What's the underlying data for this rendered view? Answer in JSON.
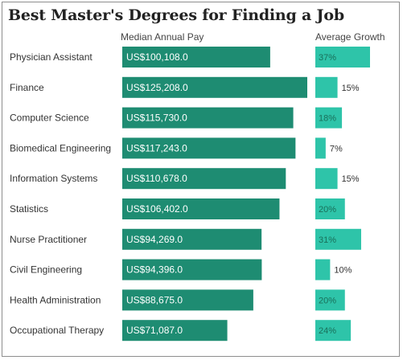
{
  "title": "Best Master's Degrees for Finding a Job",
  "columns": {
    "pay": "Median Annual Pay",
    "growth": "Average Growth"
  },
  "colors": {
    "pay_bar": "#1e8c72",
    "growth_bar": "#2ec4a9",
    "growth_label_inside": "#1a6f5a",
    "growth_label_outside": "#333333"
  },
  "chart_data": {
    "type": "bar",
    "categories": [
      "Physician Assistant",
      "Finance",
      "Computer Science",
      "Biomedical Engineering",
      "Information Systems",
      "Statistics",
      "Nurse Practitioner",
      "Civil Engineering",
      "Health Administration",
      "Occupational Therapy"
    ],
    "series": [
      {
        "name": "Median Annual Pay",
        "values": [
          100108.0,
          125208.0,
          115730.0,
          117243.0,
          110678.0,
          106402.0,
          94269.0,
          94396.0,
          88675.0,
          71087.0
        ],
        "labels": [
          "US$100,108.0",
          "US$125,208.0",
          "US$115,730.0",
          "US$117,243.0",
          "US$110,678.0",
          "US$106,402.0",
          "US$94,269.0",
          "US$94,396.0",
          "US$88,675.0",
          "US$71,087.0"
        ]
      },
      {
        "name": "Average Growth",
        "values": [
          37,
          15,
          18,
          7,
          15,
          20,
          31,
          10,
          20,
          24
        ],
        "labels": [
          "37%",
          "15%",
          "18%",
          "7%",
          "15%",
          "20%",
          "31%",
          "10%",
          "20%",
          "24%"
        ]
      }
    ]
  }
}
